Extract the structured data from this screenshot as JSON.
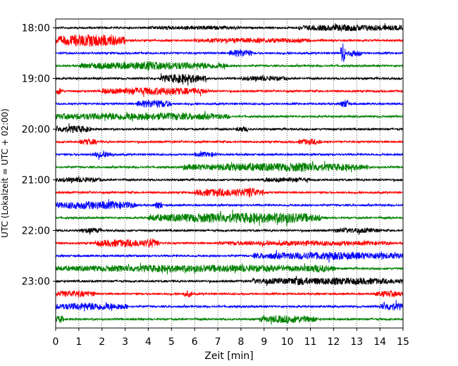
{
  "chart_data": {
    "type": "line",
    "title": "",
    "xlabel": "Zeit  [min]",
    "ylabel": "UTC (Lokalzeit = UTC + 02:00)",
    "xlim": [
      0,
      15
    ],
    "x_ticks": [
      "0",
      "1",
      "2",
      "3",
      "4",
      "5",
      "6",
      "7",
      "8",
      "9",
      "10",
      "11",
      "12",
      "13",
      "14",
      "15"
    ],
    "y_tick_labels": [
      "18:00",
      "19:00",
      "20:00",
      "21:00",
      "22:00",
      "23:00"
    ],
    "grid": "vertical dotted at every minute",
    "line_colors": [
      "#000000",
      "#ff0000",
      "#0000ff",
      "#008000"
    ],
    "trace_interval_min": 15,
    "traces": [
      {
        "time": "18:00",
        "color": "#000000",
        "bursts": [
          [
            10.5,
            15,
            0.45
          ],
          [
            4,
            8,
            0.2
          ]
        ]
      },
      {
        "time": "18:15",
        "color": "#ff0000",
        "bursts": [
          [
            0,
            3,
            1.0
          ],
          [
            6,
            11,
            0.3
          ]
        ]
      },
      {
        "time": "18:30",
        "color": "#0000ff",
        "bursts": [
          [
            7.5,
            8.5,
            0.55
          ],
          [
            12.3,
            12.5,
            1.9
          ],
          [
            12.6,
            13.2,
            0.5
          ]
        ]
      },
      {
        "time": "18:45",
        "color": "#008000",
        "bursts": [
          [
            1,
            7.5,
            0.55
          ],
          [
            3.5,
            4.5,
            0.7
          ]
        ]
      },
      {
        "time": "19:00",
        "color": "#000000",
        "bursts": [
          [
            4.5,
            6.5,
            0.65
          ],
          [
            8,
            10,
            0.3
          ]
        ]
      },
      {
        "time": "19:15",
        "color": "#ff0000",
        "bursts": [
          [
            0,
            0.3,
            0.5
          ],
          [
            2,
            6.6,
            0.55
          ]
        ]
      },
      {
        "time": "19:30",
        "color": "#0000ff",
        "bursts": [
          [
            3.5,
            5,
            0.6
          ],
          [
            12.3,
            12.7,
            0.6
          ]
        ]
      },
      {
        "time": "19:45",
        "color": "#008000",
        "bursts": [
          [
            0,
            7.5,
            0.55
          ],
          [
            1.5,
            2.5,
            0.5
          ]
        ]
      },
      {
        "time": "20:00",
        "color": "#000000",
        "bursts": [
          [
            0,
            1.5,
            0.5
          ],
          [
            7.8,
            8.3,
            0.35
          ]
        ]
      },
      {
        "time": "20:15",
        "color": "#ff0000",
        "bursts": [
          [
            1,
            1.8,
            0.4
          ],
          [
            10.5,
            11.5,
            0.4
          ]
        ]
      },
      {
        "time": "20:30",
        "color": "#0000ff",
        "bursts": [
          [
            1.5,
            2.5,
            0.4
          ],
          [
            6,
            7,
            0.3
          ]
        ]
      },
      {
        "time": "20:45",
        "color": "#008000",
        "bursts": [
          [
            5.5,
            13.5,
            0.6
          ],
          [
            9.5,
            11.8,
            0.7
          ]
        ]
      },
      {
        "time": "21:00",
        "color": "#000000",
        "bursts": [
          [
            0,
            2,
            0.3
          ],
          [
            9,
            11,
            0.3
          ]
        ]
      },
      {
        "time": "21:15",
        "color": "#ff0000",
        "bursts": [
          [
            6,
            9,
            0.6
          ],
          [
            8.2,
            8.7,
            0.85
          ]
        ]
      },
      {
        "time": "21:30",
        "color": "#0000ff",
        "bursts": [
          [
            0,
            3.5,
            0.6
          ],
          [
            4.3,
            4.6,
            0.6
          ]
        ]
      },
      {
        "time": "21:45",
        "color": "#008000",
        "bursts": [
          [
            4,
            11.5,
            0.75
          ],
          [
            8.5,
            11.2,
            0.85
          ]
        ]
      },
      {
        "time": "22:00",
        "color": "#000000",
        "bursts": [
          [
            1,
            2,
            0.3
          ],
          [
            12,
            14,
            0.3
          ]
        ]
      },
      {
        "time": "22:15",
        "color": "#ff0000",
        "bursts": [
          [
            1.7,
            4.5,
            0.55
          ],
          [
            3.9,
            4.3,
            0.8
          ],
          [
            7,
            14.5,
            0.3
          ]
        ]
      },
      {
        "time": "22:30",
        "color": "#0000ff",
        "bursts": [
          [
            8.5,
            15,
            0.55
          ],
          [
            13.8,
            14.2,
            0.7
          ]
        ]
      },
      {
        "time": "22:45",
        "color": "#008000",
        "bursts": [
          [
            0,
            12.1,
            0.5
          ],
          [
            10.5,
            12,
            0.55
          ]
        ]
      },
      {
        "time": "23:00",
        "color": "#000000",
        "bursts": [
          [
            8.5,
            15,
            0.5
          ],
          [
            10,
            11,
            0.6
          ]
        ]
      },
      {
        "time": "23:15",
        "color": "#ff0000",
        "bursts": [
          [
            0,
            1.7,
            0.45
          ],
          [
            5.5,
            5.9,
            0.45
          ],
          [
            13.8,
            15,
            0.4
          ]
        ]
      },
      {
        "time": "23:30",
        "color": "#0000ff",
        "bursts": [
          [
            0,
            3.1,
            0.55
          ],
          [
            14,
            15,
            0.6
          ]
        ]
      },
      {
        "time": "23:45",
        "color": "#008000",
        "bursts": [
          [
            0,
            0.4,
            0.5
          ],
          [
            8.8,
            11.3,
            0.55
          ]
        ]
      }
    ]
  }
}
